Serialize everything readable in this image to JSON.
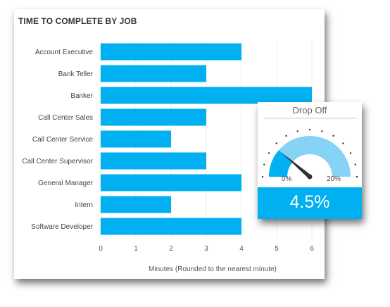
{
  "chart_data": [
    {
      "type": "bar",
      "orientation": "horizontal",
      "title": "TIME TO COMPLETE BY JOB",
      "categories": [
        "Account Executive",
        "Bank Teller",
        "Banker",
        "Call Center Sales",
        "Call Center Service",
        "Call Center Supervisor",
        "General Manager",
        "Intern",
        "Software Developer"
      ],
      "values": [
        4,
        3,
        6,
        3,
        2,
        3,
        4,
        2,
        4
      ],
      "xlabel": "Minutes (Rounded to the nearest minute)",
      "ylabel": "",
      "xlim": [
        0,
        6
      ],
      "x_ticks": [
        "0",
        "1",
        "2",
        "3",
        "4",
        "5",
        "6"
      ],
      "grid": true,
      "bar_color": "#00b0f0"
    },
    {
      "type": "gauge",
      "title": "Drop Off",
      "min": 0,
      "max": 0.2,
      "min_label": "0%",
      "max_label": "20%",
      "value": 0.045,
      "value_label": "4.5%",
      "fill_color": "#00b0f0",
      "track_color": "#87d3f5",
      "needle_color": "#333333"
    }
  ]
}
